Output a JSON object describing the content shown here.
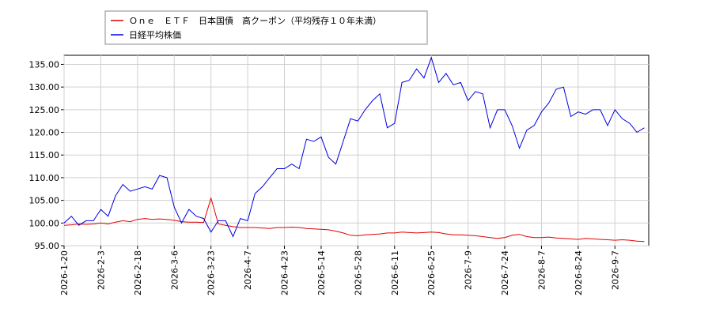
{
  "chart_data": {
    "type": "line",
    "categories": [
      "2026-1-20",
      null,
      null,
      null,
      null,
      "2026-2-3",
      null,
      null,
      null,
      null,
      "2026-2-18",
      null,
      null,
      null,
      null,
      "2026-3-6",
      null,
      null,
      null,
      null,
      "2026-3-23",
      null,
      null,
      null,
      null,
      "2026-4-7",
      null,
      null,
      null,
      null,
      "2026-4-23",
      null,
      null,
      null,
      null,
      "2026-5-14",
      null,
      null,
      null,
      null,
      "2026-5-28",
      null,
      null,
      null,
      null,
      "2026-6-11",
      null,
      null,
      null,
      null,
      "2026-6-25",
      null,
      null,
      null,
      null,
      "2026-7-9",
      null,
      null,
      null,
      null,
      "2026-7-24",
      null,
      null,
      null,
      null,
      "2026-8-7",
      null,
      null,
      null,
      null,
      "2026-8-24",
      null,
      null,
      null,
      null,
      "2026-9-7",
      null,
      null,
      null,
      null
    ],
    "series": [
      {
        "name": "Ｏｎｅ　ＥＴＦ　日本国債　高クーポン（平均残存１０年未満）",
        "color": "#e00000",
        "values": [
          99.5,
          99.6,
          99.8,
          99.7,
          99.8,
          100,
          99.8,
          100.2,
          100.5,
          100.3,
          100.8,
          101,
          100.8,
          100.9,
          100.8,
          100.6,
          100.3,
          100.2,
          100.2,
          100.1,
          105.5,
          99.8,
          99.5,
          99.2,
          99,
          99,
          99,
          98.9,
          98.8,
          99,
          99,
          99.1,
          99,
          98.8,
          98.7,
          98.6,
          98.5,
          98.2,
          97.8,
          97.3,
          97.2,
          97.4,
          97.5,
          97.6,
          97.8,
          97.8,
          98,
          97.9,
          97.8,
          97.9,
          98,
          97.9,
          97.6,
          97.4,
          97.4,
          97.3,
          97.2,
          97,
          96.8,
          96.6,
          96.8,
          97.3,
          97.5,
          97,
          96.8,
          96.8,
          96.9,
          96.7,
          96.6,
          96.5,
          96.4,
          96.6,
          96.5,
          96.4,
          96.3,
          96.2,
          96.3,
          96.2,
          96,
          95.9
        ]
      },
      {
        "name": "日経平均株価",
        "color": "#0000e0",
        "values": [
          100,
          101.5,
          99.5,
          100.5,
          100.5,
          103,
          101.5,
          106,
          108.5,
          107,
          107.5,
          108,
          107.5,
          110.5,
          110,
          103.5,
          100,
          103,
          101.5,
          101,
          98,
          100.5,
          100.5,
          97,
          101,
          100.5,
          106.5,
          108,
          110,
          112,
          112,
          113,
          112,
          118.5,
          118,
          119,
          114.5,
          113,
          118,
          123,
          122.5,
          125,
          127,
          128.5,
          121,
          122,
          131,
          131.5,
          134,
          132,
          136.5,
          131,
          133,
          130.5,
          131,
          127,
          129,
          128.5,
          121,
          125,
          125,
          121.5,
          116.5,
          120.5,
          121.5,
          124.5,
          126.5,
          129.5,
          130,
          123.5,
          124.5,
          124,
          125,
          125,
          121.5,
          125,
          123,
          122,
          120,
          121
        ]
      }
    ],
    "ylim": [
      95,
      137
    ],
    "yticks": [
      {
        "value": 95,
        "label": "95.00"
      },
      {
        "value": 100,
        "label": "100.00"
      },
      {
        "value": 105,
        "label": "105.00"
      },
      {
        "value": 110,
        "label": "110.00"
      },
      {
        "value": 115,
        "label": "115.00"
      },
      {
        "value": 120,
        "label": "120.00"
      },
      {
        "value": 125,
        "label": "125.00"
      },
      {
        "value": 130,
        "label": "130.00"
      },
      {
        "value": 135,
        "label": "135.00"
      }
    ],
    "grid": true
  }
}
